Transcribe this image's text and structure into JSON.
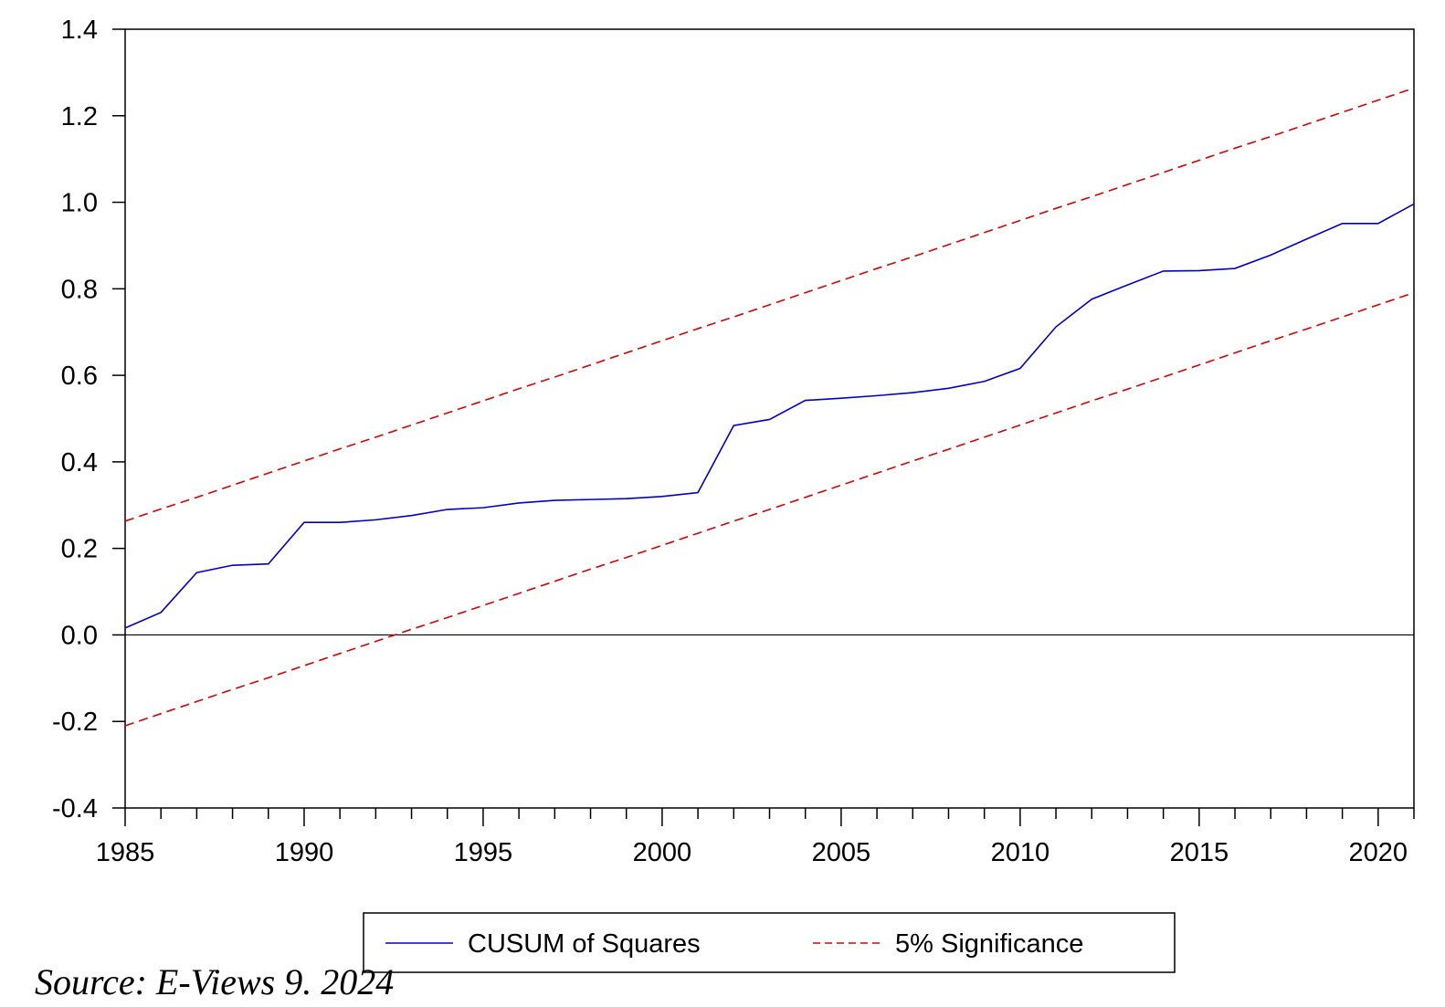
{
  "chart_data": {
    "type": "line",
    "x": [
      1985,
      1986,
      1987,
      1988,
      1989,
      1990,
      1991,
      1992,
      1993,
      1994,
      1995,
      1996,
      1997,
      1998,
      1999,
      2000,
      2001,
      2002,
      2003,
      2004,
      2005,
      2006,
      2007,
      2008,
      2009,
      2010,
      2011,
      2012,
      2013,
      2014,
      2015,
      2016,
      2017,
      2018,
      2019,
      2020,
      2021
    ],
    "series": [
      {
        "name": "CUSUM of Squares",
        "color": "#0000cc",
        "style": "solid",
        "values": [
          0.016,
          0.052,
          0.144,
          0.161,
          0.164,
          0.26,
          0.26,
          0.266,
          0.276,
          0.29,
          0.294,
          0.305,
          0.311,
          0.313,
          0.315,
          0.32,
          0.329,
          0.484,
          0.498,
          0.542,
          0.547,
          0.553,
          0.56,
          0.57,
          0.586,
          0.616,
          0.712,
          0.776,
          0.809,
          0.841,
          0.842,
          0.847,
          0.878,
          0.915,
          0.951,
          0.951,
          0.996
        ]
      },
      {
        "name": "5% Significance",
        "color": "#dd0000",
        "style": "dashed",
        "values": [
          0.263,
          0.291,
          0.318,
          0.346,
          0.374,
          0.402,
          0.43,
          0.457,
          0.485,
          0.513,
          0.541,
          0.569,
          0.596,
          0.624,
          0.652,
          0.68,
          0.708,
          0.735,
          0.763,
          0.791,
          0.819,
          0.847,
          0.874,
          0.902,
          0.93,
          0.958,
          0.986,
          1.013,
          1.041,
          1.069,
          1.097,
          1.125,
          1.152,
          1.18,
          1.208,
          1.236,
          1.264
        ]
      },
      {
        "name": "",
        "color": "#dd0000",
        "style": "dashed",
        "values": [
          -0.21,
          -0.182,
          -0.154,
          -0.126,
          -0.099,
          -0.071,
          -0.043,
          -0.015,
          0.013,
          0.04,
          0.068,
          0.096,
          0.124,
          0.152,
          0.179,
          0.207,
          0.235,
          0.263,
          0.29,
          0.318,
          0.346,
          0.374,
          0.402,
          0.429,
          0.457,
          0.485,
          0.513,
          0.541,
          0.568,
          0.596,
          0.624,
          0.652,
          0.68,
          0.707,
          0.735,
          0.763,
          0.791
        ]
      }
    ],
    "xlim": [
      1985,
      2021
    ],
    "ylim": [
      -0.4,
      1.4
    ],
    "y_ticks": [
      "-0.4",
      "-0.2",
      "0.0",
      "0.2",
      "0.4",
      "0.6",
      "0.8",
      "1.0",
      "1.2",
      "1.4"
    ],
    "y_tick_values": [
      -0.4,
      -0.2,
      0.0,
      0.2,
      0.4,
      0.6,
      0.8,
      1.0,
      1.2,
      1.4
    ],
    "x_ticks": [
      "1985",
      "1990",
      "1995",
      "2000",
      "2005",
      "2010",
      "2015",
      "2020"
    ],
    "x_tick_values": [
      1985,
      1990,
      1995,
      2000,
      2005,
      2010,
      2015,
      2020
    ],
    "zero_line": true,
    "grid": false,
    "legend": {
      "position": "bottom-center",
      "entries": [
        "CUSUM of Squares",
        "5% Significance"
      ]
    }
  },
  "source_note": "Source: E-Views 9. 2024"
}
